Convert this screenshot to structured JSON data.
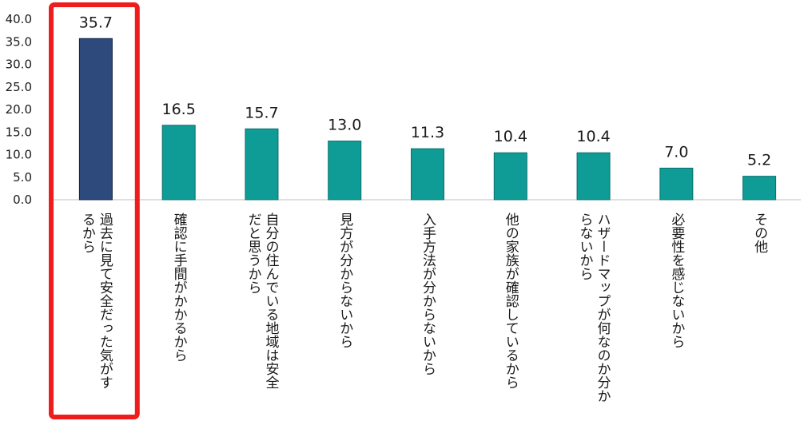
{
  "chart_data": {
    "type": "bar",
    "categories": [
      "過去に見て安全だった気がするから",
      "確認に手間がかかるから",
      "自分の住んでいる地域は安全だと思うから",
      "見方が分からないから",
      "入手方法が分からないから",
      "他の家族が確認しているから",
      "ハザードマップが何なのか分からないから",
      "必要性を感じないから",
      "その他"
    ],
    "category_lines": [
      [
        "過去に見て安全だった気がす",
        "るから"
      ],
      [
        "確認に手間がかかるから"
      ],
      [
        "自分の住んでいる地域は安全",
        "だと思うから"
      ],
      [
        "見方が分からないから"
      ],
      [
        "入手方法が分からないから"
      ],
      [
        "他の家族が確認しているから"
      ],
      [
        "ハザードマップが何なのか分か",
        "らないから"
      ],
      [
        "必要性を感じないから"
      ],
      [
        "その他"
      ]
    ],
    "values": [
      35.7,
      16.5,
      15.7,
      13.0,
      11.3,
      10.4,
      10.4,
      7.0,
      5.2
    ],
    "value_labels": [
      "35.7",
      "16.5",
      "15.7",
      "13.0",
      "11.3",
      "10.4",
      "10.4",
      "7.0",
      "5.2"
    ],
    "ylim": [
      0,
      40
    ],
    "yticks": [
      "0.0",
      "5.0",
      "10.0",
      "15.0",
      "20.0",
      "25.0",
      "30.0",
      "35.0",
      "40.0"
    ],
    "grid": false,
    "highlight_index": 0,
    "colors": {
      "highlight_bar": "#2e4a7d",
      "bar": "#0f9b96",
      "highlight_box": "#ee1c1c",
      "axis": "#bfbfbf"
    }
  }
}
